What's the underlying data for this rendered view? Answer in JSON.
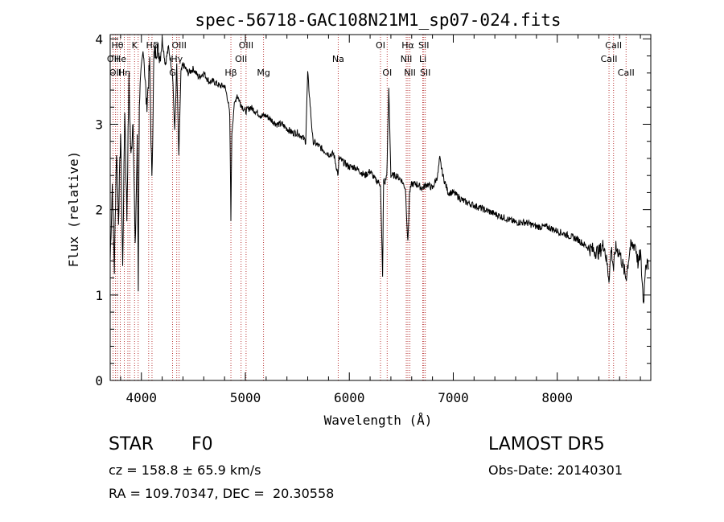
{
  "chart_data": {
    "type": "line",
    "title": "spec-56718-GAC108N21M1_sp07-024.fits",
    "xlabel": "Wavelength (Å)",
    "ylabel": "Flux (relative)",
    "xlim": [
      3700,
      8900
    ],
    "ylim": [
      0,
      4.05
    ],
    "x_ticks": [
      4000,
      5000,
      6000,
      7000,
      8000
    ],
    "y_ticks": [
      0,
      1,
      2,
      3,
      4
    ],
    "line_color": "#000000",
    "marker_color": "#b22222",
    "grid": false,
    "series": [
      {
        "x": [
          3700,
          3720,
          3740,
          3760,
          3780,
          3800,
          3820,
          3840,
          3860,
          3880,
          3900,
          3920,
          3940,
          3960,
          3970,
          3980,
          4000,
          4020,
          4050,
          4080,
          4101,
          4120,
          4150,
          4180,
          4200,
          4230,
          4260,
          4300,
          4320,
          4340,
          4360,
          4380,
          4400,
          4450,
          4500,
          4550,
          4600,
          4650,
          4700,
          4750,
          4800,
          4830,
          4850,
          4861,
          4870,
          4890,
          4920,
          4950,
          5000,
          5050,
          5100,
          5150,
          5200,
          5250,
          5300,
          5350,
          5400,
          5450,
          5500,
          5550,
          5580,
          5600,
          5650,
          5700,
          5750,
          5800,
          5850,
          5893,
          5900,
          5950,
          6000,
          6050,
          6100,
          6150,
          6200,
          6250,
          6300,
          6320,
          6330,
          6340,
          6360,
          6380,
          6400,
          6450,
          6500,
          6540,
          6563,
          6580,
          6600,
          6650,
          6700,
          6750,
          6800,
          6850,
          6870,
          6900,
          6950,
          7000,
          7100,
          7200,
          7300,
          7400,
          7500,
          7600,
          7700,
          7800,
          7900,
          8000,
          8100,
          8200,
          8300,
          8400,
          8450,
          8498,
          8520,
          8542,
          8560,
          8600,
          8662,
          8700,
          8750,
          8780,
          8800,
          8830,
          8850,
          8880
        ],
        "y": [
          1.4,
          2.3,
          1.3,
          2.7,
          1.9,
          2.9,
          1.3,
          3.2,
          1.9,
          3.5,
          2.6,
          3.1,
          1.5,
          2.8,
          1.1,
          3.3,
          3.6,
          3.9,
          3.2,
          3.7,
          2.3,
          3.8,
          3.9,
          3.8,
          4.0,
          3.7,
          3.9,
          3.6,
          2.9,
          3.7,
          2.6,
          3.6,
          3.7,
          3.6,
          3.65,
          3.55,
          3.6,
          3.5,
          3.5,
          3.45,
          3.45,
          3.3,
          3.1,
          1.9,
          2.9,
          3.2,
          3.35,
          3.25,
          3.15,
          3.2,
          3.15,
          3.1,
          3.1,
          3.05,
          3.0,
          3.0,
          2.95,
          2.9,
          2.9,
          2.85,
          2.8,
          3.6,
          2.8,
          2.75,
          2.7,
          2.65,
          2.65,
          2.4,
          2.6,
          2.55,
          2.5,
          2.5,
          2.45,
          2.4,
          2.45,
          2.35,
          2.3,
          1.2,
          2.35,
          2.3,
          2.4,
          3.4,
          2.4,
          2.4,
          2.35,
          2.25,
          1.6,
          2.2,
          2.3,
          2.3,
          2.25,
          2.3,
          2.25,
          2.4,
          2.6,
          2.4,
          2.2,
          2.2,
          2.1,
          2.05,
          2.0,
          1.95,
          1.9,
          1.85,
          1.85,
          1.8,
          1.8,
          1.75,
          1.7,
          1.65,
          1.55,
          1.5,
          1.6,
          1.2,
          1.55,
          1.3,
          1.55,
          1.5,
          1.2,
          1.55,
          1.6,
          1.35,
          1.5,
          0.9,
          1.4,
          1.3
        ]
      }
    ],
    "lines": [
      {
        "wave": 3727,
        "label": "OII",
        "row": 1
      },
      {
        "wave": 3750,
        "label": "OII",
        "row": 2
      },
      {
        "wave": 3770,
        "label": "Hθ",
        "row": 0
      },
      {
        "wave": 3797,
        "label": "He",
        "row": 1
      },
      {
        "wave": 3835,
        "label": "Hη",
        "row": 2
      },
      {
        "wave": 3870,
        "label": "",
        "row": 1
      },
      {
        "wave": 3889,
        "label": "",
        "row": 2
      },
      {
        "wave": 3934,
        "label": "K",
        "row": 0
      },
      {
        "wave": 3969,
        "label": "",
        "row": 0
      },
      {
        "wave": 4070,
        "label": "",
        "row": 1
      },
      {
        "wave": 4102,
        "label": "Hδ",
        "row": 0
      },
      {
        "wave": 4300,
        "label": "G",
        "row": 2
      },
      {
        "wave": 4340,
        "label": "Hγ",
        "row": 1
      },
      {
        "wave": 4363,
        "label": "OIII",
        "row": 0
      },
      {
        "wave": 4861,
        "label": "Hβ",
        "row": 2
      },
      {
        "wave": 4959,
        "label": "OII",
        "row": 1
      },
      {
        "wave": 5007,
        "label": "OIII",
        "row": 0
      },
      {
        "wave": 5175,
        "label": "Mg",
        "row": 2
      },
      {
        "wave": 5893,
        "label": "Na",
        "row": 1
      },
      {
        "wave": 6300,
        "label": "OI",
        "row": 0
      },
      {
        "wave": 6364,
        "label": "OI",
        "row": 2
      },
      {
        "wave": 6548,
        "label": "NII",
        "row": 1
      },
      {
        "wave": 6563,
        "label": "Hα",
        "row": 0
      },
      {
        "wave": 6583,
        "label": "NII",
        "row": 2
      },
      {
        "wave": 6707,
        "label": "Li",
        "row": 1
      },
      {
        "wave": 6716,
        "label": "SII",
        "row": 0
      },
      {
        "wave": 6731,
        "label": "SII",
        "row": 2
      },
      {
        "wave": 8498,
        "label": "CaII",
        "row": 1
      },
      {
        "wave": 8542,
        "label": "CaII",
        "row": 0
      },
      {
        "wave": 8662,
        "label": "CaII",
        "row": 2
      }
    ]
  },
  "info": {
    "object_class": "STAR",
    "subclass": "F0",
    "survey": "LAMOST DR5",
    "cz": "cz = 158.8 ± 65.9 km/s",
    "obs_date": "Obs-Date: 20140301",
    "coords": "RA = 109.70347, DEC =  20.30558"
  }
}
